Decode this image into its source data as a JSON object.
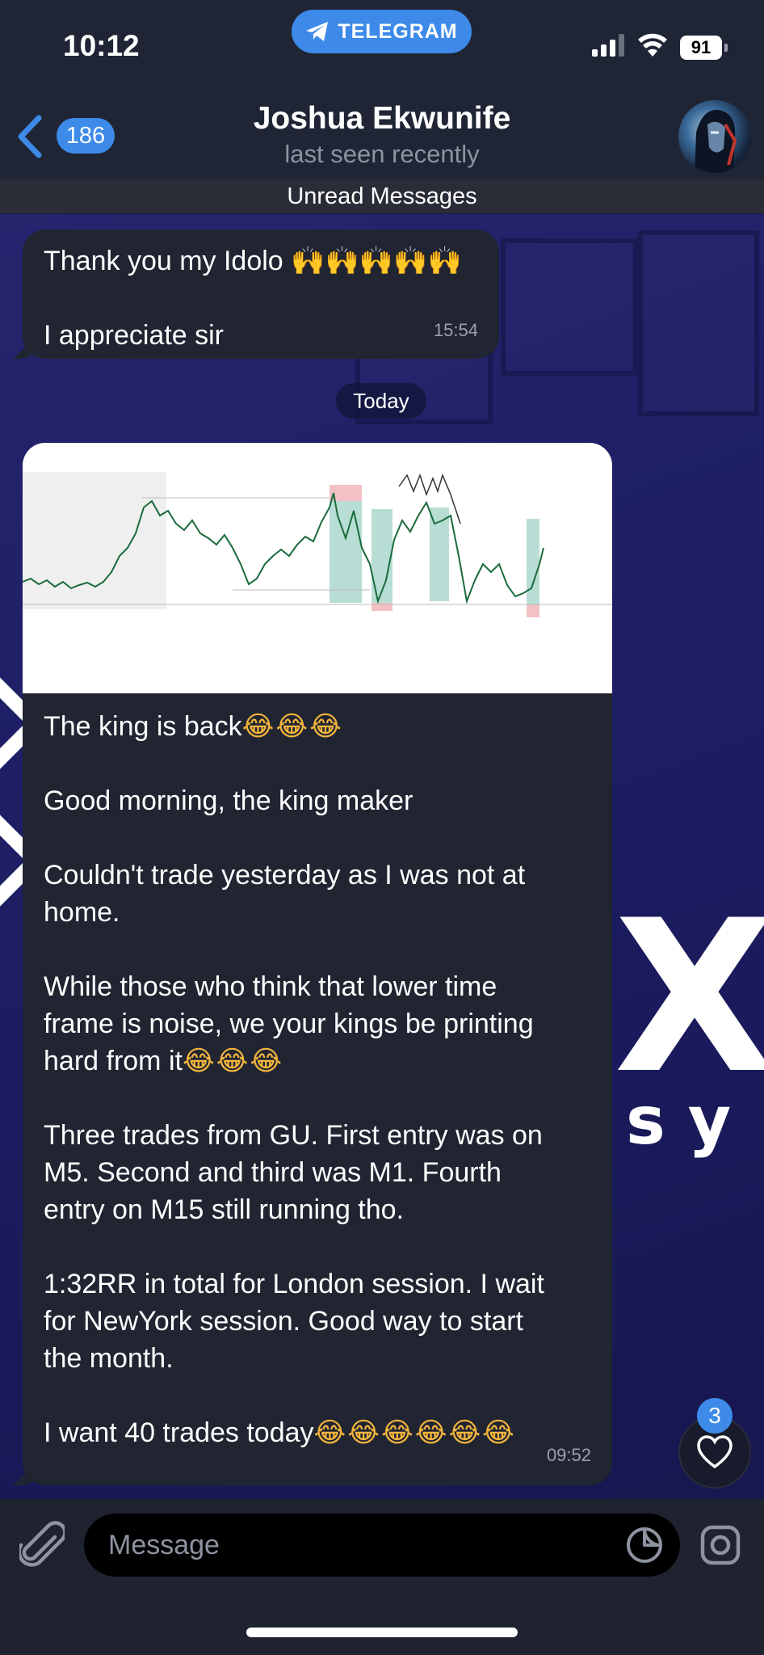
{
  "status_bar": {
    "time": "10:12",
    "app_pill": "TELEGRAM",
    "battery": "91"
  },
  "header": {
    "back_count": "186",
    "contact_name": "Joshua Ekwunife",
    "contact_status": "last seen recently"
  },
  "unread_label": "Unread Messages",
  "messages": [
    {
      "lines": [
        "Thank you my Idolo",
        "",
        "I appreciate sir"
      ],
      "emoji_line0": "🙌🙌🙌🙌🙌",
      "time": "15:54"
    },
    {
      "lines": [
        "The king is back",
        "",
        "Good morning, the king maker",
        "",
        "Couldn't trade yesterday as I was not at",
        "home.",
        "",
        "While those who think that lower time",
        "frame is noise, we your kings be printing",
        "hard from it",
        "",
        "Three trades from GU. First entry was on",
        "M5. Second and third was M1. Fourth",
        "entry on M15 still running tho.",
        "",
        "1:32RR in total for London session. I wait",
        "for NewYork session. Good way to start",
        "the month.",
        "",
        "I want 40 trades today"
      ],
      "emoji_king": "😂😂😂",
      "emoji_hard": "😂😂😂",
      "emoji_trades": "😂😂😂😂😂😂",
      "time": "09:52"
    }
  ],
  "date_separator": "Today",
  "reaction_count": "3",
  "composer": {
    "placeholder": "Message"
  },
  "colors": {
    "accent": "#3d8ae8",
    "bubble": "#212531",
    "header": "#1f2535",
    "wallpaper": "#1f2066"
  }
}
